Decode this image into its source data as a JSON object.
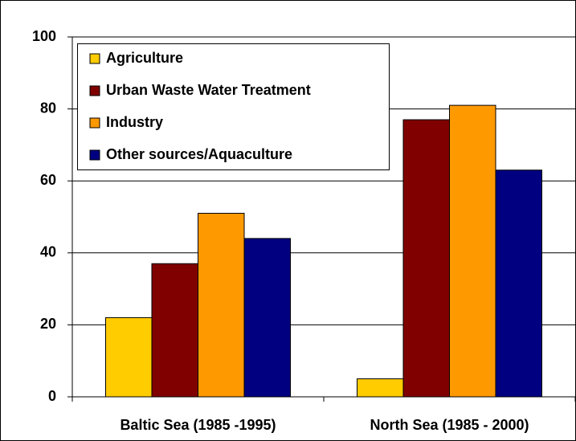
{
  "chart_data": {
    "type": "bar",
    "categories": [
      "Baltic Sea (1985 -1995)",
      "North Sea (1985 - 2000)"
    ],
    "series": [
      {
        "name": "Agriculture",
        "color": "#ffcc00",
        "values": [
          22,
          5
        ]
      },
      {
        "name": "Urban Waste Water Treatment",
        "color": "#800000",
        "values": [
          37,
          77
        ]
      },
      {
        "name": "Industry",
        "color": "#ff9900",
        "values": [
          51,
          81
        ]
      },
      {
        "name": "Other sources/Aquaculture",
        "color": "#000080",
        "values": [
          44,
          63
        ]
      }
    ],
    "ylim": [
      0,
      100
    ],
    "yticks": [
      0,
      20,
      40,
      60,
      80,
      100
    ],
    "grid": true,
    "legend": "top-left"
  }
}
